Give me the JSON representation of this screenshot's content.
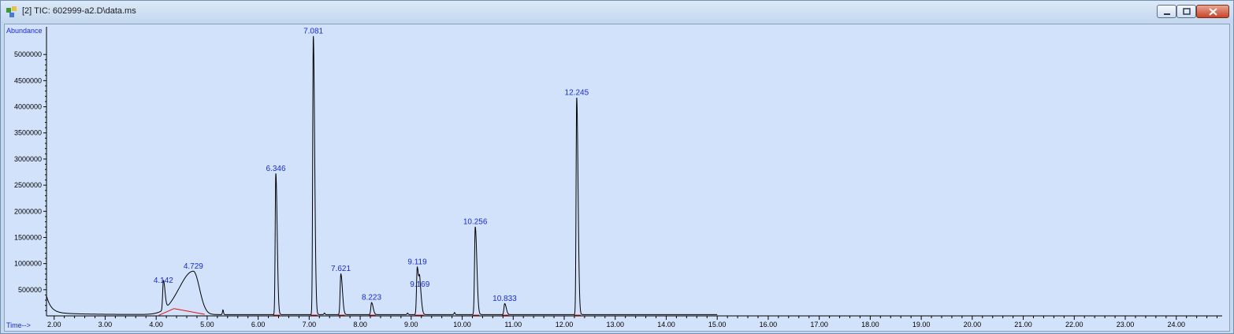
{
  "window": {
    "title": "[2] TIC: 602999-a2.D\\data.ms"
  },
  "colors": {
    "plot_background": "#d2e2fb",
    "trace": "#000000",
    "baseline": "#e01010",
    "peak_label": "#1a2ad0",
    "axis_label": "#1a2ad0"
  },
  "chart_data": {
    "type": "line",
    "ylabel": "Abundance",
    "xlabel": "Time-->",
    "xlim": [
      1.85,
      24.9
    ],
    "ylim": [
      0,
      5500000
    ],
    "y_ticks": [
      "500000",
      "1000000",
      "1500000",
      "2000000",
      "2500000",
      "3000000",
      "3500000",
      "4000000",
      "4500000",
      "5000000"
    ],
    "x_ticks": [
      "2.00",
      "3.00",
      "4.00",
      "5.00",
      "6.00",
      "7.00",
      "8.00",
      "9.00",
      "10.00",
      "11.00",
      "12.00",
      "13.00",
      "14.00",
      "15.00",
      "16.00",
      "17.00",
      "18.00",
      "19.00",
      "20.00",
      "21.00",
      "22.00",
      "23.00",
      "24.00"
    ],
    "peaks": [
      {
        "label": "4.142",
        "x": 4.142,
        "y": 560000
      },
      {
        "label": "4.729",
        "x": 4.729,
        "y": 830000
      },
      {
        "label": "6.346",
        "x": 6.346,
        "y": 2700000
      },
      {
        "label": "7.081",
        "x": 7.081,
        "y": 5330000
      },
      {
        "label": "7.621",
        "x": 7.621,
        "y": 780000
      },
      {
        "label": "8.223",
        "x": 8.223,
        "y": 230000
      },
      {
        "label": "9.119",
        "x": 9.119,
        "y": 910000
      },
      {
        "label": "9.169",
        "x": 9.169,
        "y": 480000
      },
      {
        "label": "10.256",
        "x": 10.256,
        "y": 1680000
      },
      {
        "label": "10.833",
        "x": 10.833,
        "y": 210000
      },
      {
        "label": "12.245",
        "x": 12.245,
        "y": 4150000
      }
    ]
  }
}
